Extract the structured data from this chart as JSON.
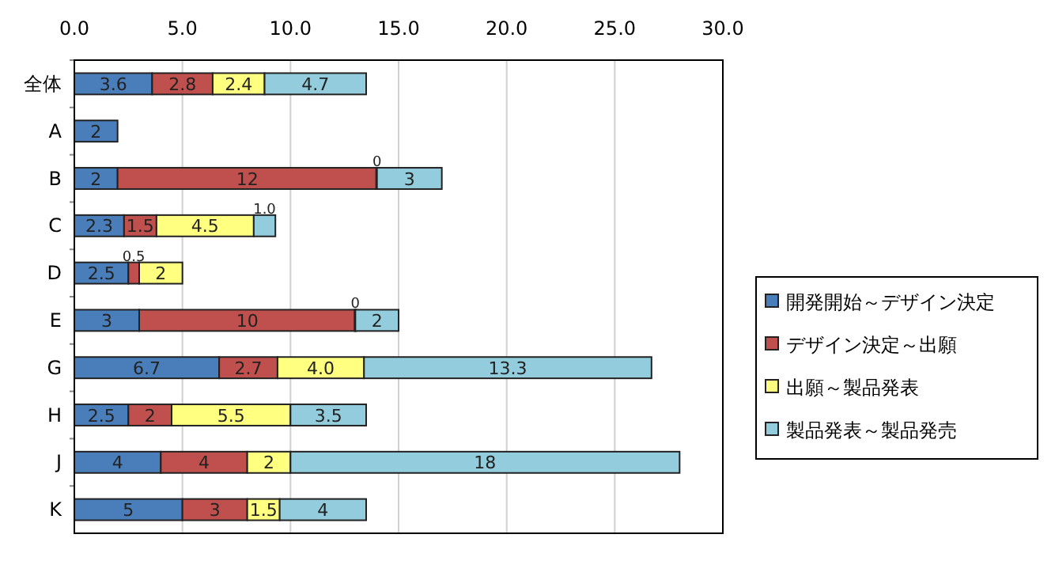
{
  "chart_data": {
    "type": "bar",
    "orientation": "horizontal",
    "stacked": true,
    "categories": [
      "全体",
      "A",
      "B",
      "C",
      "D",
      "E",
      "G",
      "H",
      "J",
      "K"
    ],
    "series": [
      {
        "name": "開発開始～デザイン決定",
        "color": "#4a7ebb",
        "values": [
          3.6,
          2,
          2,
          2.3,
          2.5,
          3,
          6.7,
          2.5,
          4,
          5
        ],
        "value_labels": [
          "3.6",
          "2",
          "2",
          "2.3",
          "2.5",
          "3",
          "6.7",
          "2.5",
          "4",
          "5"
        ]
      },
      {
        "name": "デザイン決定～出願",
        "color": "#c0504d",
        "values": [
          2.8,
          null,
          12,
          1.5,
          0.5,
          10,
          2.7,
          2,
          4,
          3
        ],
        "value_labels": [
          "2.8",
          null,
          "12",
          "1.5",
          "0.5",
          "10",
          "2.7",
          "2",
          "4",
          "3"
        ]
      },
      {
        "name": "出願～製品発表",
        "color": "#ffff80",
        "values": [
          2.4,
          null,
          0,
          4.5,
          2,
          0,
          4.0,
          5.5,
          2,
          1.5
        ],
        "value_labels": [
          "2.4",
          null,
          "0",
          "4.5",
          "2",
          "0",
          "4.0",
          "5.5",
          "2",
          "1.5"
        ]
      },
      {
        "name": "製品発表～製品発売",
        "color": "#93cddd",
        "values": [
          4.7,
          null,
          3,
          1.0,
          null,
          2,
          13.3,
          3.5,
          18,
          4
        ],
        "value_labels": [
          "4.7",
          null,
          "3",
          "1.0",
          null,
          "2",
          "13.3",
          "3.5",
          "18",
          "4"
        ]
      }
    ],
    "xlim": [
      0,
      30
    ],
    "xticks": [
      {
        "value": 0,
        "label": "0.0"
      },
      {
        "value": 5,
        "label": "5.0"
      },
      {
        "value": 10,
        "label": "10.0"
      },
      {
        "value": 15,
        "label": "15.0"
      },
      {
        "value": 20,
        "label": "20.0"
      },
      {
        "value": 25,
        "label": "25.0"
      },
      {
        "value": 30,
        "label": "30.0"
      }
    ],
    "grid": "x",
    "legend": "right"
  }
}
